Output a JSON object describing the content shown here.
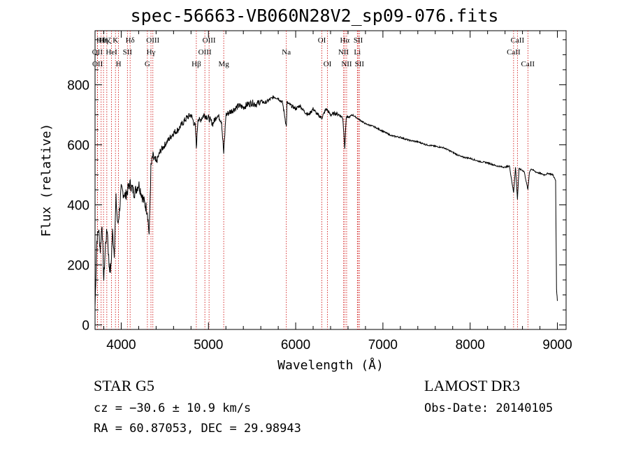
{
  "chart_data": {
    "type": "line",
    "title": "spec-56663-VB060N28V2_sp09-076.fits",
    "xlabel": "Wavelength (Å)",
    "ylabel": "Flux (relative)",
    "xlim": [
      3700,
      9100
    ],
    "ylim": [
      -15,
      980
    ],
    "x_ticks": [
      4000,
      5000,
      6000,
      7000,
      8000,
      9000
    ],
    "x_tick_labels": [
      "4000",
      "5000",
      "6000",
      "7000",
      "8000",
      "9000"
    ],
    "y_ticks": [
      0,
      200,
      400,
      600,
      800
    ],
    "y_tick_labels": [
      "0",
      "200",
      "400",
      "600",
      "800"
    ],
    "grid": false,
    "series": [
      {
        "color": "#000000",
        "x": [
          3700,
          3720,
          3740,
          3760,
          3780,
          3800,
          3820,
          3840,
          3860,
          3880,
          3900,
          3920,
          3940,
          3960,
          3980,
          4000,
          4050,
          4100,
          4150,
          4200,
          4250,
          4300,
          4320,
          4340,
          4360,
          4400,
          4450,
          4500,
          4550,
          4600,
          4650,
          4700,
          4750,
          4800,
          4850,
          4861,
          4880,
          4900,
          4950,
          5000,
          5050,
          5100,
          5150,
          5175,
          5200,
          5250,
          5300,
          5350,
          5400,
          5450,
          5500,
          5550,
          5600,
          5650,
          5700,
          5750,
          5800,
          5850,
          5893,
          5900,
          5950,
          6000,
          6050,
          6100,
          6150,
          6200,
          6250,
          6300,
          6350,
          6400,
          6450,
          6500,
          6540,
          6563,
          6580,
          6600,
          6650,
          6700,
          6750,
          6800,
          6900,
          7000,
          7100,
          7200,
          7300,
          7400,
          7500,
          7600,
          7700,
          7800,
          7900,
          8000,
          8100,
          8200,
          8300,
          8400,
          8450,
          8498,
          8520,
          8542,
          8560,
          8600,
          8620,
          8662,
          8680,
          8700,
          8750,
          8800,
          8850,
          8900,
          8950,
          8980,
          8990,
          9000
        ],
        "y": [
          60,
          280,
          320,
          250,
          340,
          150,
          270,
          320,
          200,
          180,
          310,
          240,
          420,
          330,
          380,
          450,
          430,
          470,
          440,
          470,
          420,
          380,
          300,
          520,
          560,
          540,
          580,
          600,
          620,
          640,
          650,
          670,
          690,
          700,
          660,
          590,
          690,
          680,
          700,
          690,
          670,
          700,
          680,
          570,
          700,
          710,
          720,
          730,
          725,
          735,
          740,
          735,
          745,
          740,
          750,
          760,
          755,
          740,
          660,
          740,
          730,
          720,
          730,
          710,
          700,
          720,
          700,
          690,
          720,
          700,
          705,
          700,
          690,
          590,
          695,
          690,
          700,
          690,
          680,
          670,
          660,
          645,
          630,
          625,
          615,
          610,
          600,
          595,
          590,
          575,
          560,
          555,
          545,
          540,
          530,
          525,
          530,
          440,
          525,
          420,
          520,
          515,
          510,
          450,
          510,
          520,
          510,
          505,
          500,
          505,
          500,
          480,
          120,
          80
        ]
      }
    ],
    "lines": [
      {
        "x": 3770,
        "label": "Hθ",
        "row": 1
      },
      {
        "x": 3797,
        "label": "Hη",
        "row": 1
      },
      {
        "x": 3835,
        "label": "Hζ",
        "row": 1
      },
      {
        "x": 3889,
        "label": "HeI",
        "row": 2
      },
      {
        "x": 3934,
        "label": "K",
        "row": 1
      },
      {
        "x": 3969,
        "label": "H",
        "row": 3
      },
      {
        "x": 4071,
        "label": "SII",
        "row": 2
      },
      {
        "x": 4102,
        "label": "Hδ",
        "row": 1
      },
      {
        "x": 4300,
        "label": "G",
        "row": 3
      },
      {
        "x": 4341,
        "label": "Hγ",
        "row": 2
      },
      {
        "x": 4363,
        "label": "OIII",
        "row": 1
      },
      {
        "x": 4861,
        "label": "Hβ",
        "row": 3
      },
      {
        "x": 4959,
        "label": "OIII",
        "row": 2
      },
      {
        "x": 5007,
        "label": "OIII",
        "row": 1
      },
      {
        "x": 5175,
        "label": "Mg",
        "row": 3
      },
      {
        "x": 5893,
        "label": "Na",
        "row": 2
      },
      {
        "x": 6300,
        "label": "OI",
        "row": 1
      },
      {
        "x": 6364,
        "label": "OI",
        "row": 3
      },
      {
        "x": 6548,
        "label": "NII",
        "row": 2
      },
      {
        "x": 6563,
        "label": "Hα",
        "row": 1
      },
      {
        "x": 6584,
        "label": "NII",
        "row": 3
      },
      {
        "x": 6707,
        "label": "Li",
        "row": 2
      },
      {
        "x": 6717,
        "label": "SII",
        "row": 1
      },
      {
        "x": 6731,
        "label": "SII",
        "row": 3
      },
      {
        "x": 8498,
        "label": "CaII",
        "row": 2
      },
      {
        "x": 8542,
        "label": "CaII",
        "row": 1
      },
      {
        "x": 8662,
        "label": "CaII",
        "row": 3
      }
    ],
    "line_color": "#cc0000",
    "extra_labels": [
      {
        "label": "OII",
        "x": 3727,
        "row": 2
      },
      {
        "label": "OII",
        "x": 3729,
        "row": 3
      }
    ]
  },
  "info": {
    "object_class": "STAR    G5",
    "survey": "LAMOST DR3",
    "redshift": "cz = −30.6 ± 10.9 km/s",
    "obs_date": "Obs-Date: 20140105",
    "coords": "RA =  60.87053, DEC =  29.98943"
  }
}
